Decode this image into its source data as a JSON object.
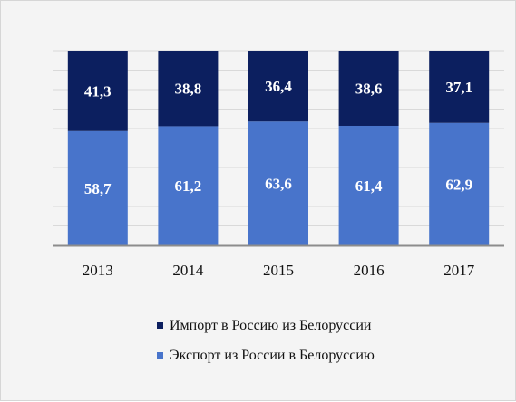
{
  "colors": {
    "import": "#0c1f5f",
    "export": "#4874cb"
  },
  "chart_data": {
    "type": "bar",
    "stacked": true,
    "percent_stacked": true,
    "categories": [
      "2013",
      "2014",
      "2015",
      "2016",
      "2017"
    ],
    "series": [
      {
        "name": "Импорт в Россию из Белоруссии",
        "key": "import",
        "values": [
          41.3,
          38.8,
          36.4,
          38.6,
          37.1
        ],
        "labels": [
          "41,3",
          "38,8",
          "36,4",
          "38,6",
          "37,1"
        ]
      },
      {
        "name": "Экспорт из России в Белоруссию",
        "key": "export",
        "values": [
          58.7,
          61.2,
          63.6,
          61.4,
          62.9
        ],
        "labels": [
          "58,7",
          "61,2",
          "63,6",
          "61,4",
          "62,9"
        ]
      }
    ],
    "ylim": [
      0,
      100
    ],
    "grid": true,
    "legend_position": "bottom"
  }
}
